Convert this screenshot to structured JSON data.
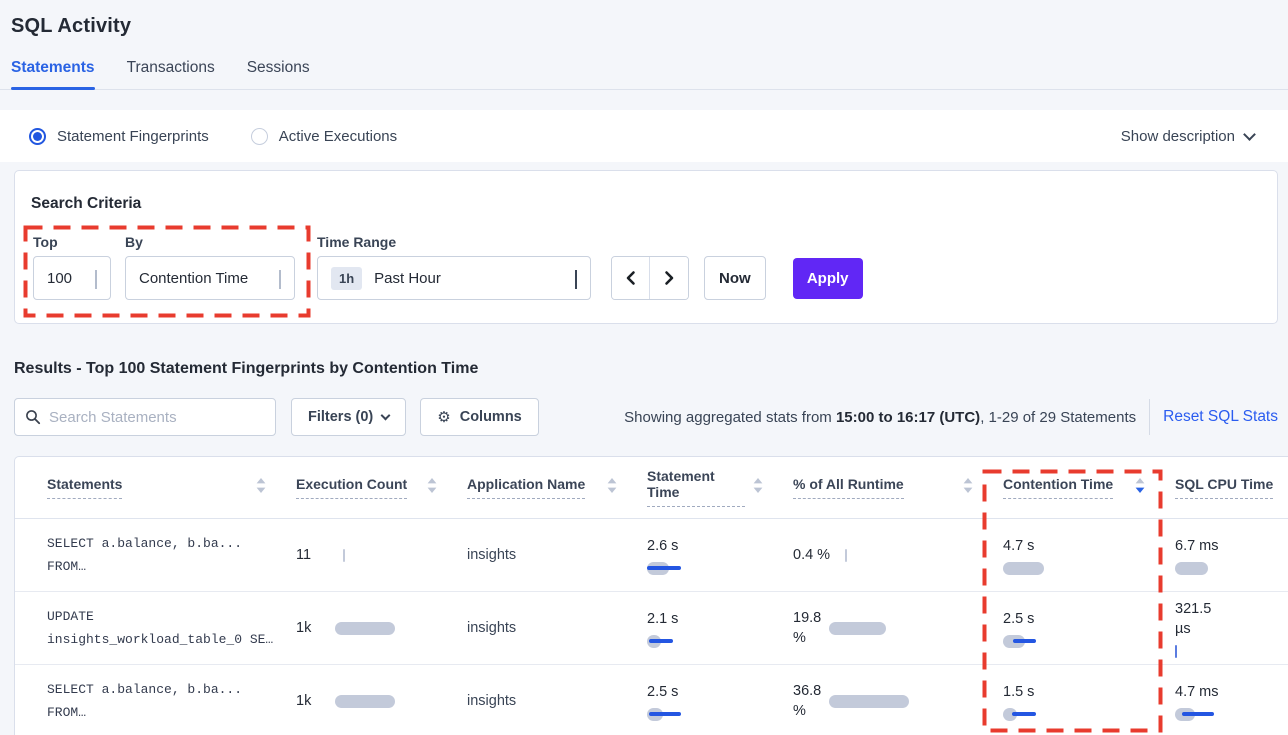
{
  "page": {
    "title": "SQL Activity"
  },
  "tabs": [
    {
      "label": "Statements",
      "active": true
    },
    {
      "label": "Transactions",
      "active": false
    },
    {
      "label": "Sessions",
      "active": false
    }
  ],
  "view_toggle": {
    "options": [
      {
        "label": "Statement Fingerprints",
        "selected": true
      },
      {
        "label": "Active Executions",
        "selected": false
      }
    ],
    "show_description": "Show description"
  },
  "search_criteria": {
    "title": "Search Criteria",
    "top": {
      "label": "Top",
      "value": "100"
    },
    "by": {
      "label": "By",
      "value": "Contention Time"
    },
    "time_range": {
      "label": "Time Range",
      "badge": "1h",
      "value": "Past Hour"
    },
    "prev_label": "previous time range",
    "next_label": "next time range",
    "now_label": "Now",
    "apply_label": "Apply"
  },
  "results": {
    "heading": "Results - Top 100 Statement Fingerprints by Contention Time",
    "search_placeholder": "Search Statements",
    "filters_label": "Filters (0)",
    "columns_label": "Columns",
    "gear_glyph": "⚙",
    "showing_prefix": "Showing aggregated stats from ",
    "showing_bold": "15:00 to 16:17 (UTC)",
    "showing_suffix": ", 1-29 of 29 Statements",
    "reset_label": "Reset SQL Stats"
  },
  "table": {
    "columns": [
      {
        "label": "Statements",
        "sort": "both"
      },
      {
        "label": "Execution Count",
        "sort": "both"
      },
      {
        "label": "Application Name",
        "sort": "both"
      },
      {
        "label": "Statement Time",
        "sort": "both"
      },
      {
        "label": "% of All Runtime",
        "sort": "both"
      },
      {
        "label": "Contention Time",
        "sort": "desc"
      },
      {
        "label": "SQL CPU Time",
        "sort": "none"
      }
    ],
    "rows": [
      {
        "statement": [
          "SELECT a.balance, b.ba...",
          "FROM…"
        ],
        "execution_count": {
          "text": "11",
          "layout": "inline",
          "textWidth": 39,
          "bar": {
            "tick": "gray"
          }
        },
        "application": "insights",
        "statement_time": {
          "text": "2.6 s",
          "layout": "stack",
          "bar": {
            "gray": 22,
            "blue": [
              0,
              34
            ]
          }
        },
        "pct_runtime": {
          "text": "0.4 %",
          "layout": "inline",
          "textWidth": 44,
          "bar": {
            "tick": "gray"
          }
        },
        "contention_time": {
          "text": "4.7 s",
          "layout": "stack",
          "bar": {
            "gray": 41
          }
        },
        "sql_cpu": {
          "text": "6.7 ms",
          "layout": "stack",
          "bar": {
            "gray": 33
          }
        }
      },
      {
        "statement": [
          "UPDATE",
          "insights_workload_table_0 SE…"
        ],
        "execution_count": {
          "text": "1k",
          "layout": "inline",
          "textWidth": 39,
          "bar": {
            "gray": 60
          }
        },
        "application": "insights",
        "statement_time": {
          "text": "2.1 s",
          "layout": "stack",
          "bar": {
            "gray": 14,
            "blue": [
              2,
              26
            ]
          }
        },
        "pct_runtime": {
          "text": "19.8 %",
          "layout": "wrap",
          "textWidth": 36,
          "bar": {
            "gray": 57
          }
        },
        "contention_time": {
          "text": "2.5 s",
          "layout": "stack",
          "bar": {
            "gray": 22,
            "blue": [
              10,
              33
            ]
          }
        },
        "sql_cpu": {
          "text": "321.5 µs",
          "layout": "stack",
          "textWidth": 46,
          "bar": {
            "tick": "blue"
          }
        }
      },
      {
        "statement": [
          "SELECT a.balance, b.ba...",
          "FROM…"
        ],
        "execution_count": {
          "text": "1k",
          "layout": "inline",
          "textWidth": 39,
          "bar": {
            "gray": 60
          }
        },
        "application": "insights",
        "statement_time": {
          "text": "2.5 s",
          "layout": "stack",
          "bar": {
            "gray": 16,
            "blue": [
              2,
              34
            ]
          }
        },
        "pct_runtime": {
          "text": "36.8 %",
          "layout": "wrap",
          "textWidth": 36,
          "bar": {
            "gray": 80
          }
        },
        "contention_time": {
          "text": "1.5 s",
          "layout": "stack",
          "bar": {
            "gray": 14,
            "blue": [
              9,
              33
            ]
          }
        },
        "sql_cpu": {
          "text": "4.7 ms",
          "layout": "stack",
          "bar": {
            "gray": 20,
            "blue": [
              7,
              39
            ]
          }
        }
      }
    ]
  },
  "colors": {
    "accent_blue": "#2a63e4",
    "link_blue": "#2a5cf0",
    "apply_purple": "#6127f5",
    "annotation_red": "#e83b2e",
    "bar_gray": "#c3cada",
    "bar_blue": "#2456e2",
    "page_background": "#f4f6fa"
  },
  "annotations": {
    "search_criteria_box": "highlight around Top and By selectors",
    "contention_column_box": "highlight around Contention Time column"
  }
}
